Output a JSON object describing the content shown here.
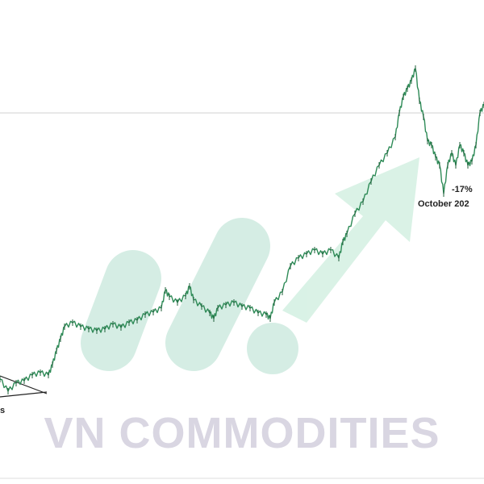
{
  "chart_data": {
    "type": "line",
    "title": "",
    "xlabel": "",
    "ylabel": "",
    "grid": false,
    "legend": "none",
    "ylim": [
      0,
      600
    ],
    "reference_line": 460,
    "x": [
      0,
      10,
      20,
      30,
      40,
      50,
      60,
      65,
      70,
      75,
      80,
      90,
      100,
      110,
      120,
      130,
      140,
      150,
      160,
      170,
      180,
      190,
      200,
      205,
      210,
      220,
      230,
      235,
      240,
      250,
      260,
      265,
      270,
      280,
      290,
      300,
      310,
      320,
      330,
      335,
      340,
      350,
      360,
      370,
      380,
      390,
      400,
      410,
      420,
      425,
      430,
      440,
      450,
      460,
      470,
      480,
      490,
      495,
      500,
      505,
      510,
      515,
      520,
      525,
      530,
      535,
      540,
      545,
      550,
      555,
      560,
      565,
      570,
      575,
      580,
      585,
      590,
      595,
      600
    ],
    "series": [
      {
        "values": [
          130,
          115,
          125,
          128,
          135,
          138,
          135,
          148,
          165,
          180,
          195,
          200,
          195,
          192,
          190,
          192,
          198,
          194,
          200,
          203,
          210,
          213,
          218,
          240,
          232,
          225,
          233,
          245,
          228,
          220,
          212,
          205,
          218,
          222,
          225,
          220,
          218,
          212,
          210,
          205,
          225,
          238,
          270,
          280,
          285,
          290,
          285,
          290,
          280,
          300,
          310,
          335,
          350,
          375,
          395,
          410,
          430,
          460,
          480,
          490,
          500,
          515,
          475,
          455,
          425,
          420,
          405,
          395,
          360,
          395,
          410,
          395,
          420,
          410,
          395,
          400,
          420,
          460,
          470
        ]
      }
    ],
    "line_color": "#2e8b57",
    "reference_color": "#d0d0d0",
    "annotations": {
      "drop_pct": "-17%",
      "drop_date": "October 202",
      "left_fragment": "s"
    }
  },
  "watermark": {
    "text": "VN COMMODITIES",
    "text_color": "#d9d6e2",
    "logo_color": "#c8e8dc",
    "arrow_color": "#cdeede"
  }
}
